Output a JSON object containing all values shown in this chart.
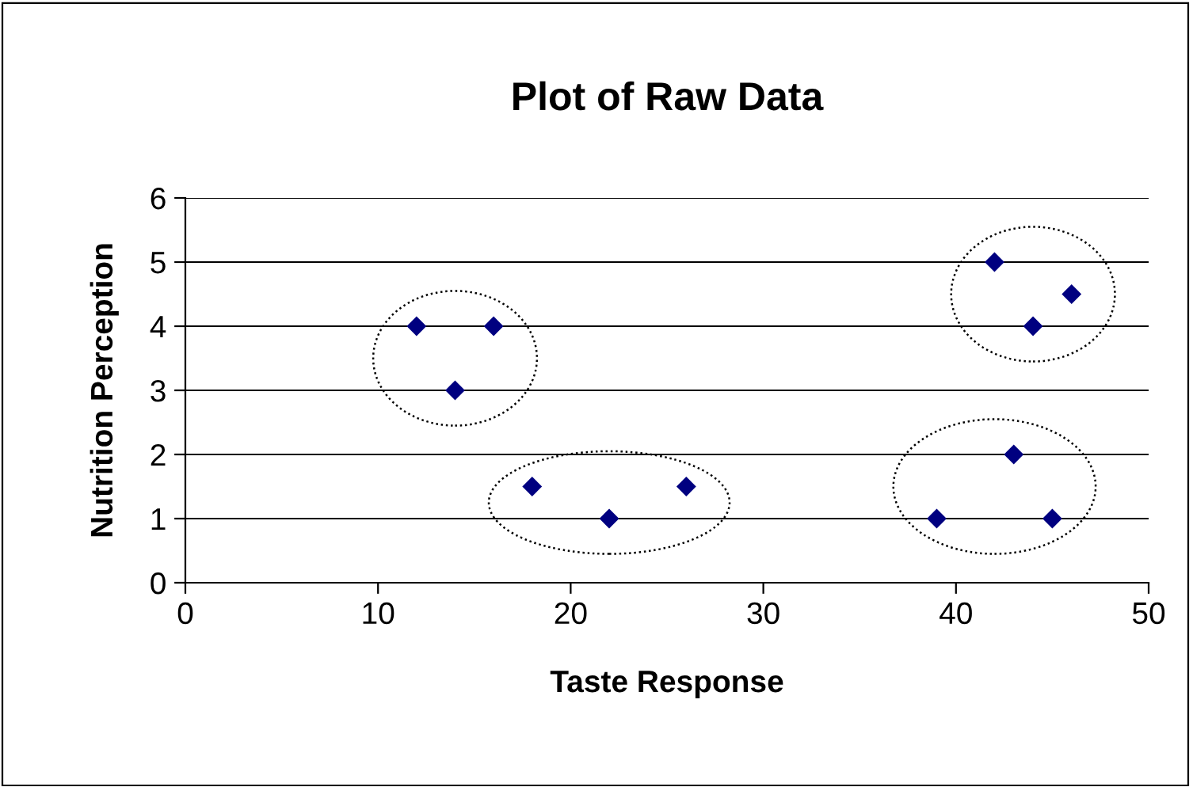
{
  "chart_data": {
    "type": "scatter",
    "title": "Plot of Raw Data",
    "xlabel": "Taste Response",
    "ylabel": "Nutrition Perception",
    "x": [
      12,
      14,
      16,
      18,
      22,
      26,
      39,
      43,
      45,
      42,
      44,
      46
    ],
    "values": [
      4,
      3,
      4,
      1.5,
      1,
      1.5,
      1,
      2,
      1,
      5,
      4,
      4.5
    ],
    "color": "#000080",
    "marker": "diamond",
    "xlim": [
      0,
      50
    ],
    "xticks": [
      0,
      10,
      20,
      30,
      40,
      50
    ],
    "ylim": [
      0,
      6
    ],
    "yticks": [
      0,
      1,
      2,
      3,
      4,
      5,
      6
    ],
    "grid": "y"
  }
}
